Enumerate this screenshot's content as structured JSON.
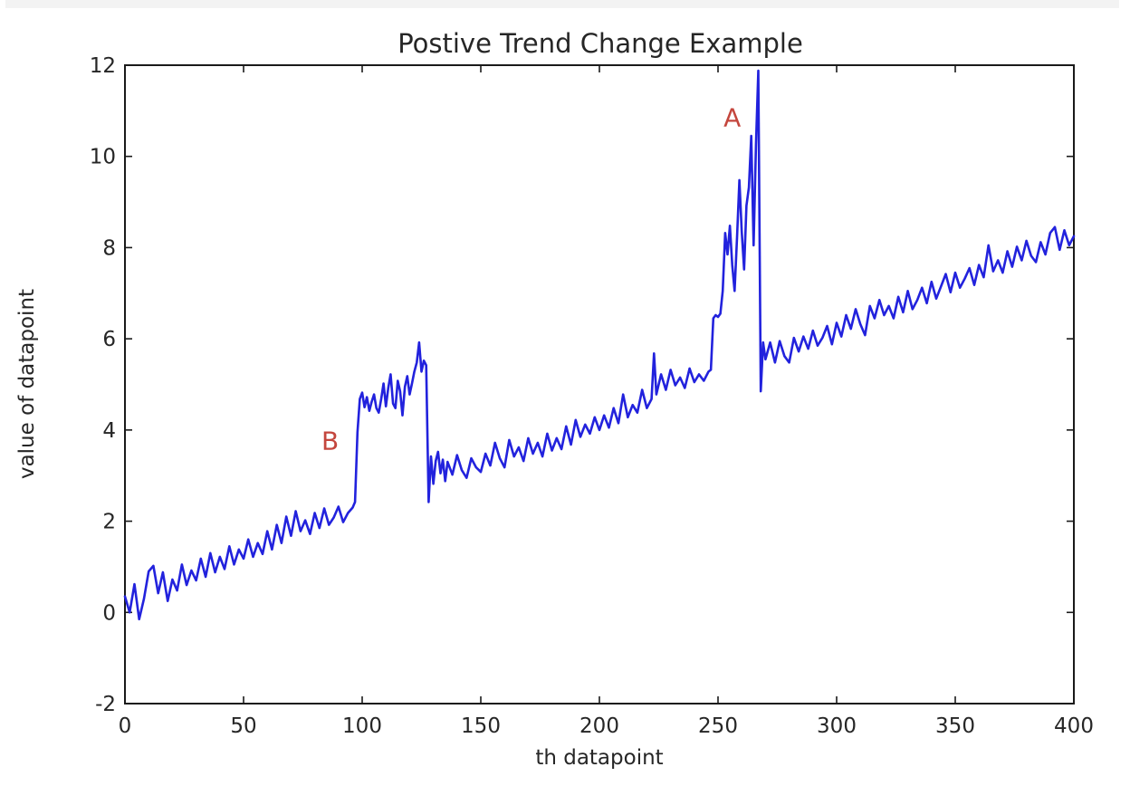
{
  "chart_data": {
    "type": "line",
    "title": "Postive Trend Change Example",
    "xlabel": "th datapoint",
    "ylabel": "value of datapoint",
    "xlim": [
      0,
      400
    ],
    "ylim": [
      -2,
      12
    ],
    "xticks": [
      0,
      50,
      100,
      150,
      200,
      250,
      300,
      350,
      400
    ],
    "yticks": [
      -2,
      0,
      2,
      4,
      6,
      8,
      10,
      12
    ],
    "grid": false,
    "legend": null,
    "line_color": "#2222dd",
    "axis_color": "#1a1a1a",
    "annotation_color": "#c4463d",
    "annotations": [
      {
        "label": "A",
        "x": 256,
        "y": 10.85
      },
      {
        "label": "B",
        "x": 86.5,
        "y": 3.75
      }
    ],
    "points": [
      [
        0,
        0.35
      ],
      [
        2,
        0.0
      ],
      [
        4,
        0.62
      ],
      [
        6,
        -0.15
      ],
      [
        8,
        0.3
      ],
      [
        10,
        0.9
      ],
      [
        12,
        1.02
      ],
      [
        14,
        0.42
      ],
      [
        16,
        0.88
      ],
      [
        18,
        0.25
      ],
      [
        20,
        0.72
      ],
      [
        22,
        0.48
      ],
      [
        24,
        1.05
      ],
      [
        26,
        0.6
      ],
      [
        28,
        0.92
      ],
      [
        30,
        0.7
      ],
      [
        32,
        1.18
      ],
      [
        34,
        0.78
      ],
      [
        36,
        1.3
      ],
      [
        38,
        0.88
      ],
      [
        40,
        1.22
      ],
      [
        42,
        0.95
      ],
      [
        44,
        1.45
      ],
      [
        46,
        1.05
      ],
      [
        48,
        1.38
      ],
      [
        50,
        1.18
      ],
      [
        52,
        1.6
      ],
      [
        54,
        1.22
      ],
      [
        56,
        1.52
      ],
      [
        58,
        1.28
      ],
      [
        60,
        1.78
      ],
      [
        62,
        1.38
      ],
      [
        64,
        1.92
      ],
      [
        66,
        1.52
      ],
      [
        68,
        2.1
      ],
      [
        70,
        1.68
      ],
      [
        72,
        2.22
      ],
      [
        74,
        1.78
      ],
      [
        76,
        2.02
      ],
      [
        78,
        1.72
      ],
      [
        80,
        2.18
      ],
      [
        82,
        1.85
      ],
      [
        84,
        2.28
      ],
      [
        86,
        1.92
      ],
      [
        88,
        2.08
      ],
      [
        90,
        2.32
      ],
      [
        92,
        1.98
      ],
      [
        94,
        2.18
      ],
      [
        96,
        2.3
      ],
      [
        97,
        2.42
      ],
      [
        98,
        3.95
      ],
      [
        99,
        4.68
      ],
      [
        100,
        4.82
      ],
      [
        101,
        4.5
      ],
      [
        102,
        4.72
      ],
      [
        103,
        4.42
      ],
      [
        104,
        4.62
      ],
      [
        105,
        4.78
      ],
      [
        106,
        4.48
      ],
      [
        107,
        4.38
      ],
      [
        108,
        4.68
      ],
      [
        109,
        5.02
      ],
      [
        110,
        4.52
      ],
      [
        111,
        4.92
      ],
      [
        112,
        5.22
      ],
      [
        113,
        4.58
      ],
      [
        114,
        4.48
      ],
      [
        115,
        5.08
      ],
      [
        116,
        4.85
      ],
      [
        117,
        4.32
      ],
      [
        118,
        4.95
      ],
      [
        119,
        5.18
      ],
      [
        120,
        4.78
      ],
      [
        121,
        5.02
      ],
      [
        122,
        5.28
      ],
      [
        123,
        5.48
      ],
      [
        124,
        5.92
      ],
      [
        125,
        5.28
      ],
      [
        126,
        5.52
      ],
      [
        127,
        5.42
      ],
      [
        128,
        2.42
      ],
      [
        129,
        3.42
      ],
      [
        130,
        2.82
      ],
      [
        131,
        3.32
      ],
      [
        132,
        3.52
      ],
      [
        133,
        3.05
      ],
      [
        134,
        3.35
      ],
      [
        135,
        2.88
      ],
      [
        136,
        3.3
      ],
      [
        138,
        3.02
      ],
      [
        140,
        3.45
      ],
      [
        142,
        3.12
      ],
      [
        144,
        2.95
      ],
      [
        146,
        3.38
      ],
      [
        148,
        3.18
      ],
      [
        150,
        3.08
      ],
      [
        152,
        3.48
      ],
      [
        154,
        3.22
      ],
      [
        156,
        3.72
      ],
      [
        158,
        3.38
      ],
      [
        160,
        3.18
      ],
      [
        162,
        3.78
      ],
      [
        164,
        3.42
      ],
      [
        166,
        3.62
      ],
      [
        168,
        3.32
      ],
      [
        170,
        3.82
      ],
      [
        172,
        3.48
      ],
      [
        174,
        3.72
      ],
      [
        176,
        3.42
      ],
      [
        178,
        3.92
      ],
      [
        180,
        3.55
      ],
      [
        182,
        3.82
      ],
      [
        184,
        3.58
      ],
      [
        186,
        4.08
      ],
      [
        188,
        3.68
      ],
      [
        190,
        4.22
      ],
      [
        192,
        3.85
      ],
      [
        194,
        4.12
      ],
      [
        196,
        3.92
      ],
      [
        198,
        4.28
      ],
      [
        200,
        4.0
      ],
      [
        202,
        4.32
      ],
      [
        204,
        4.05
      ],
      [
        206,
        4.48
      ],
      [
        208,
        4.15
      ],
      [
        210,
        4.78
      ],
      [
        212,
        4.28
      ],
      [
        214,
        4.55
      ],
      [
        216,
        4.38
      ],
      [
        218,
        4.88
      ],
      [
        220,
        4.48
      ],
      [
        222,
        4.68
      ],
      [
        223,
        5.68
      ],
      [
        224,
        4.78
      ],
      [
        226,
        5.22
      ],
      [
        228,
        4.88
      ],
      [
        230,
        5.32
      ],
      [
        232,
        4.98
      ],
      [
        234,
        5.15
      ],
      [
        236,
        4.92
      ],
      [
        238,
        5.35
      ],
      [
        240,
        5.05
      ],
      [
        242,
        5.22
      ],
      [
        244,
        5.08
      ],
      [
        246,
        5.28
      ],
      [
        247,
        5.32
      ],
      [
        248,
        6.45
      ],
      [
        249,
        6.52
      ],
      [
        250,
        6.48
      ],
      [
        251,
        6.55
      ],
      [
        252,
        7.05
      ],
      [
        253,
        8.32
      ],
      [
        254,
        7.85
      ],
      [
        255,
        8.48
      ],
      [
        256,
        7.62
      ],
      [
        257,
        7.05
      ],
      [
        258,
        8.22
      ],
      [
        259,
        9.48
      ],
      [
        260,
        8.35
      ],
      [
        261,
        7.52
      ],
      [
        262,
        8.92
      ],
      [
        263,
        9.32
      ],
      [
        264,
        10.45
      ],
      [
        265,
        8.05
      ],
      [
        266,
        10.25
      ],
      [
        267,
        11.88
      ],
      [
        268,
        4.85
      ],
      [
        269,
        5.92
      ],
      [
        270,
        5.55
      ],
      [
        272,
        5.92
      ],
      [
        274,
        5.48
      ],
      [
        276,
        5.95
      ],
      [
        278,
        5.62
      ],
      [
        280,
        5.48
      ],
      [
        282,
        6.02
      ],
      [
        284,
        5.72
      ],
      [
        286,
        6.05
      ],
      [
        288,
        5.78
      ],
      [
        290,
        6.18
      ],
      [
        292,
        5.85
      ],
      [
        294,
        6.02
      ],
      [
        296,
        6.28
      ],
      [
        298,
        5.88
      ],
      [
        300,
        6.35
      ],
      [
        302,
        6.05
      ],
      [
        304,
        6.52
      ],
      [
        306,
        6.22
      ],
      [
        308,
        6.65
      ],
      [
        310,
        6.32
      ],
      [
        312,
        6.08
      ],
      [
        314,
        6.72
      ],
      [
        316,
        6.45
      ],
      [
        318,
        6.85
      ],
      [
        320,
        6.52
      ],
      [
        322,
        6.72
      ],
      [
        324,
        6.45
      ],
      [
        326,
        6.92
      ],
      [
        328,
        6.58
      ],
      [
        330,
        7.05
      ],
      [
        332,
        6.65
      ],
      [
        334,
        6.85
      ],
      [
        336,
        7.12
      ],
      [
        338,
        6.78
      ],
      [
        340,
        7.25
      ],
      [
        342,
        6.88
      ],
      [
        344,
        7.15
      ],
      [
        346,
        7.42
      ],
      [
        348,
        7.02
      ],
      [
        350,
        7.45
      ],
      [
        352,
        7.12
      ],
      [
        354,
        7.32
      ],
      [
        356,
        7.55
      ],
      [
        358,
        7.18
      ],
      [
        360,
        7.62
      ],
      [
        362,
        7.35
      ],
      [
        364,
        8.05
      ],
      [
        366,
        7.48
      ],
      [
        368,
        7.72
      ],
      [
        370,
        7.45
      ],
      [
        372,
        7.92
      ],
      [
        374,
        7.58
      ],
      [
        376,
        8.02
      ],
      [
        378,
        7.72
      ],
      [
        380,
        8.15
      ],
      [
        382,
        7.82
      ],
      [
        384,
        7.68
      ],
      [
        386,
        8.12
      ],
      [
        388,
        7.85
      ],
      [
        390,
        8.32
      ],
      [
        392,
        8.45
      ],
      [
        394,
        7.95
      ],
      [
        396,
        8.38
      ],
      [
        398,
        8.05
      ],
      [
        400,
        8.25
      ]
    ]
  }
}
